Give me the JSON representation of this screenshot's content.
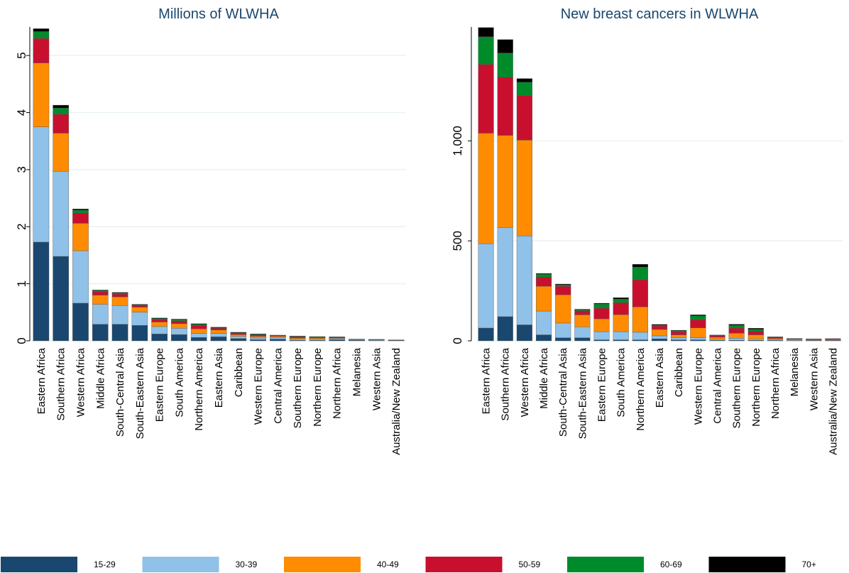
{
  "chart_data": [
    {
      "type": "stacked-bar",
      "title": "Millions of WLWHA",
      "categories": [
        "Eastern Africa",
        "Southern Africa",
        "Western Africa",
        "Middle Africa",
        "South-Central Asia",
        "South-Eastern Asia",
        "Eastern Europe",
        "South America",
        "Northern America",
        "Eastern Asia",
        "Caribbean",
        "Western Europe",
        "Central America",
        "Southern Europe",
        "Northern Europe",
        "Northern Africa",
        "Melanesia",
        "Western Asia",
        "Australia/New Zealand"
      ],
      "ylim": [
        0,
        5.5
      ],
      "yticks": [
        0,
        1,
        2,
        3,
        4,
        5
      ],
      "grid": true,
      "series": [
        {
          "name": "15-29",
          "color": "#1a476f",
          "values": [
            1.73,
            1.48,
            0.66,
            0.29,
            0.29,
            0.27,
            0.12,
            0.11,
            0.06,
            0.07,
            0.04,
            0.02,
            0.03,
            0.01,
            0.01,
            0.02,
            0.01,
            0.005,
            0.002
          ]
        },
        {
          "name": "30-39",
          "color": "#90c1e8",
          "values": [
            2.02,
            1.49,
            0.92,
            0.35,
            0.33,
            0.23,
            0.13,
            0.11,
            0.07,
            0.06,
            0.04,
            0.03,
            0.03,
            0.02,
            0.02,
            0.02,
            0.01,
            0.01,
            0.004
          ]
        },
        {
          "name": "40-49",
          "color": "#ff8c00",
          "values": [
            1.12,
            0.67,
            0.48,
            0.16,
            0.15,
            0.09,
            0.08,
            0.08,
            0.08,
            0.06,
            0.03,
            0.03,
            0.02,
            0.02,
            0.02,
            0.01,
            0.005,
            0.005,
            0.004
          ]
        },
        {
          "name": "50-59",
          "color": "#c8102e",
          "values": [
            0.43,
            0.33,
            0.18,
            0.06,
            0.05,
            0.03,
            0.04,
            0.05,
            0.06,
            0.03,
            0.02,
            0.02,
            0.01,
            0.02,
            0.01,
            0.01,
            0.003,
            0.003,
            0.003
          ]
        },
        {
          "name": "60-69",
          "color": "#008b2b",
          "values": [
            0.12,
            0.11,
            0.05,
            0.02,
            0.02,
            0.01,
            0.02,
            0.02,
            0.02,
            0.01,
            0.01,
            0.01,
            0.005,
            0.01,
            0.01,
            0.005,
            0.001,
            0.001,
            0.002
          ]
        },
        {
          "name": "70+",
          "color": "#000000",
          "values": [
            0.05,
            0.05,
            0.02,
            0.01,
            0.01,
            0.01,
            0.01,
            0.01,
            0.01,
            0.01,
            0.01,
            0.01,
            0.005,
            0.005,
            0.005,
            0.005,
            0.001,
            0.001,
            0.001
          ]
        }
      ]
    },
    {
      "type": "stacked-bar",
      "title": "New breast cancers in WLWHA",
      "categories": [
        "Eastern Africa",
        "Southern Africa",
        "Western Africa",
        "Middle Africa",
        "South-Central Asia",
        "South-Eastern Asia",
        "Eastern Europe",
        "South America",
        "Northern America",
        "Eastern Asia",
        "Caribbean",
        "Western Europe",
        "Central America",
        "Southern Europe",
        "Northern Europe",
        "Northern Africa",
        "Melanesia",
        "Western Asia",
        "Australia/New Zealand"
      ],
      "ylim": [
        0,
        1570
      ],
      "yticks": [
        0,
        500,
        {
          "value": 1000,
          "label": "1,000"
        }
      ],
      "grid": true,
      "series": [
        {
          "name": "15-29",
          "color": "#1a476f",
          "values": [
            64,
            121,
            80,
            30,
            15,
            15,
            5,
            5,
            5,
            10,
            5,
            5,
            3,
            3,
            3,
            2,
            1,
            1,
            1
          ]
        },
        {
          "name": "30-39",
          "color": "#90c1e8",
          "values": [
            422,
            446,
            445,
            119,
            74,
            55,
            41,
            41,
            38,
            15,
            10,
            10,
            5,
            10,
            7,
            4,
            3,
            2,
            2
          ]
        },
        {
          "name": "40-49",
          "color": "#ff8c00",
          "values": [
            553,
            461,
            479,
            124,
            141,
            60,
            64,
            85,
            127,
            32,
            15,
            50,
            10,
            25,
            20,
            6,
            4,
            3,
            3
          ]
        },
        {
          "name": "50-59",
          "color": "#c8102e",
          "values": [
            344,
            291,
            223,
            46,
            43,
            20,
            53,
            60,
            135,
            17,
            15,
            40,
            7,
            25,
            18,
            5,
            2,
            2,
            3
          ]
        },
        {
          "name": "60-69",
          "color": "#008b2b",
          "values": [
            138,
            121,
            67,
            14,
            7,
            5,
            21,
            18,
            64,
            4,
            5,
            20,
            2,
            15,
            10,
            2,
            1,
            1,
            1
          ]
        },
        {
          "name": "70+",
          "color": "#000000",
          "values": [
            46,
            67,
            18,
            4,
            4,
            3,
            4,
            7,
            14,
            4,
            3,
            5,
            2,
            5,
            5,
            1,
            1,
            1,
            1
          ]
        }
      ]
    }
  ]
}
